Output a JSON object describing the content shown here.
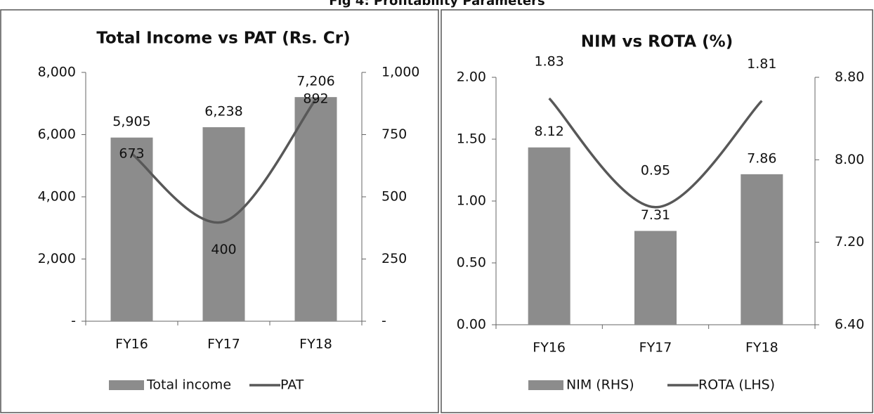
{
  "title": "Fig 4: Profitability Parameters",
  "chart_data": [
    {
      "type": "combo",
      "title": "Total Income vs PAT (Rs. Cr)",
      "categories": [
        "FY16",
        "FY17",
        "FY18"
      ],
      "series": [
        {
          "name": "Total income",
          "type": "bar",
          "color": "#8c8c8c",
          "values": [
            5905,
            6238,
            7206
          ],
          "value_labels": [
            "5,905",
            "6,238",
            "7,206"
          ]
        },
        {
          "name": "PAT",
          "type": "line",
          "axis": "y2",
          "color": "#585858",
          "values": [
            673,
            400,
            892
          ]
        }
      ],
      "ylim": [
        0,
        8000
      ],
      "yticks": [
        {
          "value": 0,
          "label": "-"
        },
        {
          "value": 2000,
          "label": "2,000"
        },
        {
          "value": 4000,
          "label": "4,000"
        },
        {
          "value": 6000,
          "label": "6,000"
        },
        {
          "value": 8000,
          "label": "8,000"
        }
      ],
      "y2lim": [
        0,
        1000
      ],
      "y2ticks": [
        {
          "value": 0,
          "label": "-"
        },
        250,
        500,
        750,
        {
          "value": 1000,
          "label": "1,000"
        }
      ],
      "legend": "bottom"
    },
    {
      "type": "combo",
      "title": "NIM vs ROTA (%)",
      "categories": [
        "FY16",
        "FY17",
        "FY18"
      ],
      "series": [
        {
          "name": "NIM (RHS)",
          "type": "bar",
          "axis": "y2",
          "color": "#8c8c8c",
          "values": [
            8.12,
            7.31,
            7.86
          ]
        },
        {
          "name": "ROTA (LHS)",
          "type": "line",
          "color": "#585858",
          "values": [
            1.83,
            0.95,
            1.81
          ]
        }
      ],
      "ylim": [
        0,
        2
      ],
      "yticks": [
        {
          "value": 0,
          "label": "0.00"
        },
        {
          "value": 0.5,
          "label": "0.50"
        },
        {
          "value": 1,
          "label": "1.00"
        },
        {
          "value": 1.5,
          "label": "1.50"
        },
        {
          "value": 2,
          "label": "2.00"
        }
      ],
      "y2lim": [
        6.4,
        8.8
      ],
      "y2ticks": [
        {
          "value": 6.4,
          "label": "6.40"
        },
        {
          "value": 7.2,
          "label": "7.20"
        },
        {
          "value": 8,
          "label": "8.00"
        },
        {
          "value": 8.8,
          "label": "8.80"
        }
      ],
      "legend": "bottom"
    }
  ]
}
